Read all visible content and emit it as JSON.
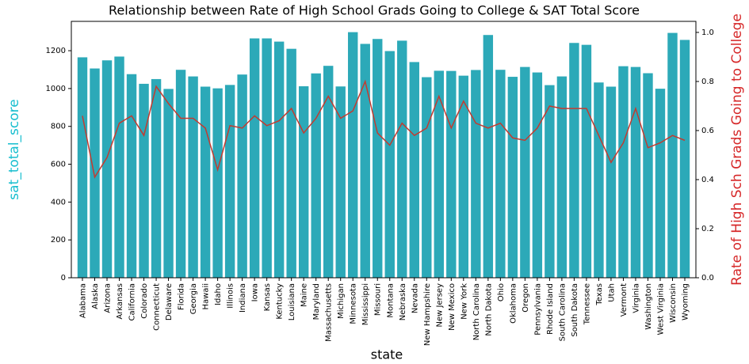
{
  "chart_data": {
    "type": "bar",
    "title": "Relationship between Rate of High School Grads Going to College & SAT Total Score",
    "x_label": "state",
    "y_label": "sat_total_score",
    "y2_label": "Rate of High Sch Grads Going to College",
    "y_label_color": "#17becf",
    "y2_label_color": "#d62728",
    "categories": [
      "Alabama",
      "Alaska",
      "Arizona",
      "Arkansas",
      "California",
      "Colorado",
      "Connecticut",
      "Delaware",
      "Florida",
      "Georgia",
      "Hawaii",
      "Idaho",
      "Illinois",
      "Indiana",
      "Iowa",
      "Kansas",
      "Kentucky",
      "Louisiana",
      "Maine",
      "Maryland",
      "Massachusetts",
      "Michigan",
      "Minnesota",
      "Mississippi",
      "Missouri",
      "Montana",
      "Nebraska",
      "Nevada",
      "New Hampshire",
      "New Jersey",
      "New Mexico",
      "New York",
      "North Carolina",
      "North Dakota",
      "Ohio",
      "Oklahoma",
      "Oregon",
      "Pennsylvania",
      "Rhode Island",
      "South Carolina",
      "South Dakota",
      "Tennessee",
      "Texas",
      "Utah",
      "Vermont",
      "Virginia",
      "Washington",
      "West Virginia",
      "Wisconsin",
      "Wyoming"
    ],
    "series": [
      {
        "type": "bar",
        "color": "#2ca9b8",
        "values": [
          1165,
          1106,
          1149,
          1169,
          1076,
          1025,
          1050,
          998,
          1099,
          1064,
          1010,
          1001,
          1019,
          1074,
          1265,
          1265,
          1248,
          1210,
          1012,
          1080,
          1120,
          1011,
          1298,
          1236,
          1262,
          1198,
          1253,
          1140,
          1060,
          1094,
          1093,
          1068,
          1098,
          1283,
          1099,
          1062,
          1114,
          1085,
          1018,
          1064,
          1241,
          1231,
          1032,
          1010,
          1118,
          1114,
          1081,
          999,
          1294,
          1257
        ]
      },
      {
        "type": "line",
        "axis": "y2",
        "color": "#c23b30",
        "values": [
          0.66,
          0.41,
          0.49,
          0.63,
          0.66,
          0.58,
          0.78,
          0.71,
          0.65,
          0.65,
          0.61,
          0.44,
          0.62,
          0.61,
          0.66,
          0.62,
          0.64,
          0.69,
          0.59,
          0.65,
          0.74,
          0.65,
          0.68,
          0.8,
          0.59,
          0.54,
          0.63,
          0.58,
          0.61,
          0.74,
          0.61,
          0.72,
          0.63,
          0.61,
          0.63,
          0.57,
          0.56,
          0.61,
          0.7,
          0.69,
          0.69,
          0.69,
          0.58,
          0.47,
          0.55,
          0.69,
          0.53,
          0.55,
          0.58,
          0.56
        ]
      }
    ],
    "ylim": [
      0,
      1355
    ],
    "yticks": [
      0,
      200,
      400,
      600,
      800,
      1000,
      1200
    ],
    "y2lim": [
      0,
      1.045
    ],
    "y2ticks": [
      {
        "value": 0,
        "label": "0.0"
      },
      0.2,
      0.4,
      0.6,
      0.8,
      {
        "value": 1,
        "label": "1.0"
      }
    ]
  }
}
